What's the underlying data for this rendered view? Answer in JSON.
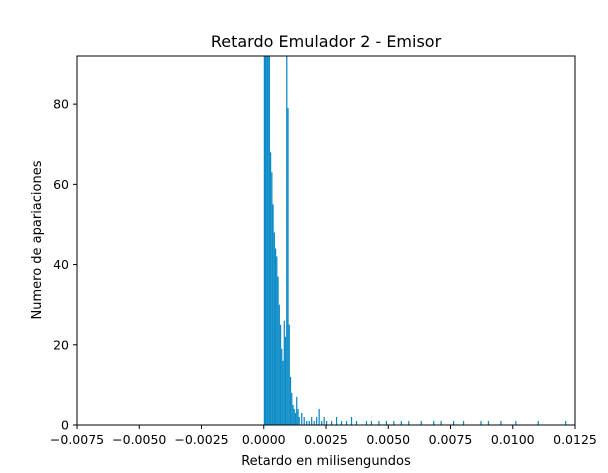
{
  "chart_data": {
    "type": "bar",
    "title": "Retardo Emulador 2 - Emisor",
    "xlabel": "Retardo en milisengundos",
    "ylabel": "Numero de apariaciones",
    "xlim": [
      -0.0075,
      0.0125
    ],
    "ylim": [
      0,
      92
    ],
    "xticks": [
      "−0.0075",
      "−0.0050",
      "−0.0025",
      "0.0000",
      "0.0025",
      "0.0050",
      "0.0075",
      "0.0100",
      "0.0125"
    ],
    "xtick_values": [
      -0.0075,
      -0.005,
      -0.0025,
      0.0,
      0.0025,
      0.005,
      0.0075,
      0.01,
      0.0125
    ],
    "yticks": [
      "0",
      "20",
      "40",
      "60",
      "80"
    ],
    "ytick_values": [
      0,
      20,
      40,
      60,
      80
    ],
    "bar_color": "#0a8ac6",
    "grid": false,
    "legend": false,
    "bins": [
      {
        "x": 0.0,
        "count": 92
      },
      {
        "x": 5e-05,
        "count": 92
      },
      {
        "x": 0.0001,
        "count": 92
      },
      {
        "x": 0.00015,
        "count": 92
      },
      {
        "x": 0.0002,
        "count": 92
      },
      {
        "x": 0.00025,
        "count": 68
      },
      {
        "x": 0.0003,
        "count": 63
      },
      {
        "x": 0.00035,
        "count": 55
      },
      {
        "x": 0.0004,
        "count": 48
      },
      {
        "x": 0.00045,
        "count": 44
      },
      {
        "x": 0.0005,
        "count": 42
      },
      {
        "x": 0.00055,
        "count": 37
      },
      {
        "x": 0.0006,
        "count": 30
      },
      {
        "x": 0.00065,
        "count": 25
      },
      {
        "x": 0.0007,
        "count": 19
      },
      {
        "x": 0.00075,
        "count": 16
      },
      {
        "x": 0.0008,
        "count": 26
      },
      {
        "x": 0.00085,
        "count": 22
      },
      {
        "x": 0.0009,
        "count": 92
      },
      {
        "x": 0.00095,
        "count": 79
      },
      {
        "x": 0.001,
        "count": 25
      },
      {
        "x": 0.00105,
        "count": 12
      },
      {
        "x": 0.0011,
        "count": 8
      },
      {
        "x": 0.00115,
        "count": 5
      },
      {
        "x": 0.0012,
        "count": 4
      },
      {
        "x": 0.00125,
        "count": 3
      },
      {
        "x": 0.0013,
        "count": 7
      },
      {
        "x": 0.00135,
        "count": 4
      },
      {
        "x": 0.0014,
        "count": 2
      },
      {
        "x": 0.0015,
        "count": 3
      },
      {
        "x": 0.0016,
        "count": 2
      },
      {
        "x": 0.0017,
        "count": 1
      },
      {
        "x": 0.0018,
        "count": 1
      },
      {
        "x": 0.0019,
        "count": 2
      },
      {
        "x": 0.002,
        "count": 1
      },
      {
        "x": 0.0021,
        "count": 2
      },
      {
        "x": 0.0022,
        "count": 4
      },
      {
        "x": 0.0023,
        "count": 1
      },
      {
        "x": 0.0024,
        "count": 2
      },
      {
        "x": 0.0025,
        "count": 1
      },
      {
        "x": 0.0027,
        "count": 1
      },
      {
        "x": 0.0029,
        "count": 2
      },
      {
        "x": 0.0031,
        "count": 1
      },
      {
        "x": 0.0033,
        "count": 1
      },
      {
        "x": 0.0035,
        "count": 2
      },
      {
        "x": 0.0037,
        "count": 1
      },
      {
        "x": 0.0041,
        "count": 1
      },
      {
        "x": 0.0043,
        "count": 1
      },
      {
        "x": 0.0046,
        "count": 1
      },
      {
        "x": 0.0049,
        "count": 1
      },
      {
        "x": 0.0052,
        "count": 1
      },
      {
        "x": 0.0055,
        "count": 1
      },
      {
        "x": 0.0058,
        "count": 1
      },
      {
        "x": 0.0063,
        "count": 1
      },
      {
        "x": 0.0068,
        "count": 1
      },
      {
        "x": 0.0071,
        "count": 1
      },
      {
        "x": 0.0076,
        "count": 1
      },
      {
        "x": 0.008,
        "count": 1
      },
      {
        "x": 0.0087,
        "count": 1
      },
      {
        "x": 0.009,
        "count": 1
      },
      {
        "x": 0.0095,
        "count": 1
      },
      {
        "x": 0.0101,
        "count": 1
      },
      {
        "x": 0.011,
        "count": 1
      },
      {
        "x": 0.0121,
        "count": 1
      }
    ]
  }
}
